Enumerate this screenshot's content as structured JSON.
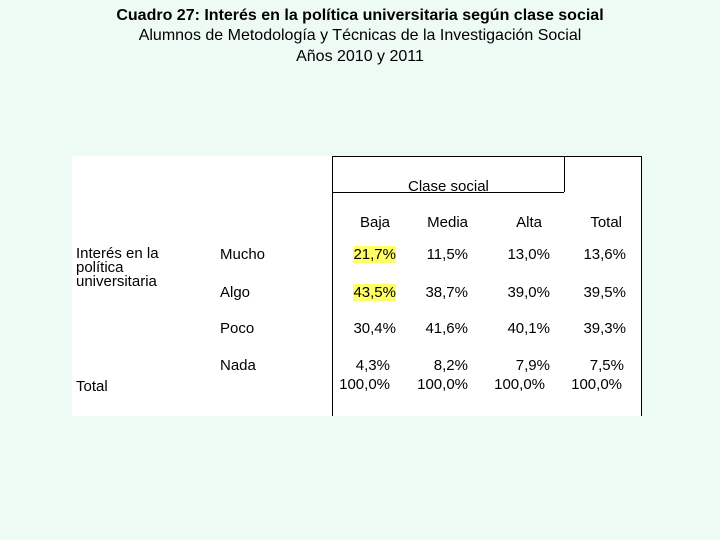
{
  "title": {
    "line1": "Cuadro 27: Interés en la política universitaria según clase social",
    "line2": "Alumnos de Metodología y Técnicas de la Investigación Social",
    "line3": "Años 2010 y 2011"
  },
  "table": {
    "group_header": "Clase social",
    "columns": [
      "Baja",
      "Media",
      "Alta",
      "Total"
    ],
    "row_group_label": "Interés en la política universitaria",
    "rows": [
      {
        "label": "Mucho",
        "values": [
          "21,7%",
          "11,5%",
          "13,0%",
          "13,6%"
        ],
        "highlight": [
          true,
          false,
          false,
          false
        ]
      },
      {
        "label": "Algo",
        "values": [
          "43,5%",
          "38,7%",
          "39,0%",
          "39,5%"
        ],
        "highlight": [
          true,
          false,
          false,
          false
        ]
      },
      {
        "label": "Poco",
        "values": [
          "30,4%",
          "41,6%",
          "40,1%",
          "39,3%"
        ],
        "highlight": [
          false,
          false,
          false,
          false
        ]
      },
      {
        "label": "Nada",
        "values": [
          "4,3%",
          "8,2%",
          "7,9%",
          "7,5%"
        ],
        "highlight": [
          false,
          false,
          false,
          false
        ]
      }
    ],
    "total_label": "Total",
    "total_values": [
      "100,0%",
      "100,0%",
      "100,0%",
      "100,0%"
    ],
    "highlight_color": "#ffff66"
  }
}
